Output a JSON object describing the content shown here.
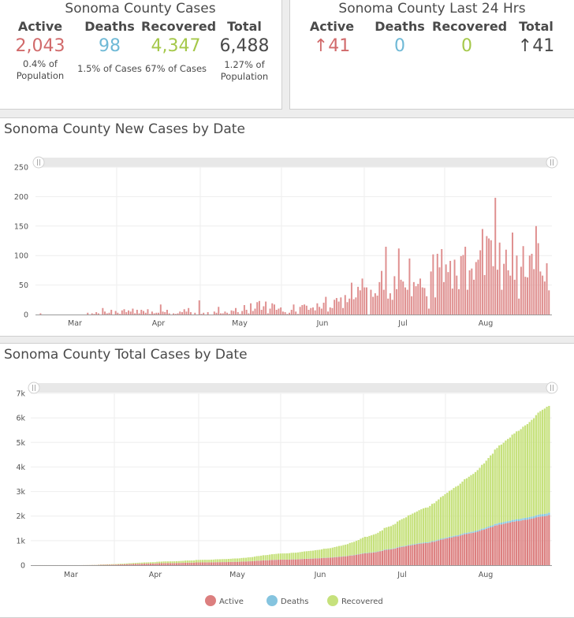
{
  "cases_panel": {
    "title": "Sonoma County Cases",
    "kpis": [
      {
        "label": "Active",
        "value": "2,043",
        "sub": "0.4% of Population",
        "color": "#d16a6b"
      },
      {
        "label": "Deaths",
        "value": "98",
        "sub": "1.5% of Cases",
        "color": "#6fb9d6"
      },
      {
        "label": "Recovered",
        "value": "4,347",
        "sub": "67% of Cases",
        "color": "#a5c84a"
      },
      {
        "label": "Total",
        "value": "6,488",
        "sub": "1.27% of Population",
        "color": "#4a4a4a"
      }
    ]
  },
  "last24_panel": {
    "title": "Sonoma County Last 24 Hrs",
    "kpis": [
      {
        "label": "Active",
        "value": "↑41",
        "color": "#d16a6b"
      },
      {
        "label": "Deaths",
        "value": "0",
        "color": "#6fb9d6"
      },
      {
        "label": "Recovered",
        "value": "0",
        "color": "#a5c84a"
      },
      {
        "label": "Total",
        "value": "↑41",
        "color": "#4a4a4a"
      }
    ]
  },
  "chart_data": [
    {
      "type": "bar",
      "title": "Sonoma County New Cases by Date",
      "x_tick_labels": [
        "Mar",
        "Apr",
        "May",
        "Jun",
        "Jul",
        "Aug"
      ],
      "y_tick_labels": [
        "0",
        "50",
        "100",
        "150",
        "200",
        "250"
      ],
      "ylim": [
        0,
        250
      ],
      "grid": true,
      "range_slider": true,
      "series": [
        {
          "color": "#df8f8f",
          "values": [
            0,
            0,
            2,
            0,
            0,
            0,
            0,
            0,
            0,
            0,
            0,
            0,
            0,
            0,
            0,
            0,
            0,
            0,
            0,
            0,
            0,
            0,
            0,
            0,
            3,
            0,
            2,
            1,
            4,
            2,
            0,
            11,
            5,
            2,
            3,
            8,
            0,
            6,
            3,
            1,
            7,
            9,
            4,
            7,
            5,
            10,
            2,
            8,
            2,
            8,
            6,
            3,
            9,
            1,
            5,
            2,
            3,
            3,
            17,
            5,
            4,
            8,
            2,
            0,
            2,
            1,
            2,
            5,
            4,
            9,
            5,
            11,
            4,
            0,
            3,
            0,
            24,
            1,
            3,
            0,
            4,
            0,
            0,
            5,
            3,
            13,
            2,
            2,
            5,
            3,
            1,
            7,
            6,
            11,
            4,
            1,
            6,
            16,
            8,
            2,
            19,
            6,
            10,
            21,
            23,
            8,
            14,
            22,
            2,
            10,
            19,
            17,
            8,
            10,
            12,
            5,
            4,
            1,
            3,
            8,
            17,
            5,
            1,
            13,
            16,
            17,
            15,
            8,
            11,
            12,
            7,
            19,
            13,
            10,
            20,
            30,
            5,
            12,
            11,
            25,
            28,
            22,
            29,
            11,
            33,
            21,
            27,
            54,
            26,
            29,
            47,
            41,
            61,
            46,
            46,
            0,
            42,
            30,
            36,
            32,
            55,
            74,
            42,
            115,
            27,
            36,
            25,
            65,
            43,
            112,
            59,
            56,
            46,
            42,
            95,
            31,
            55,
            48,
            52,
            61,
            46,
            45,
            31,
            10,
            73,
            102,
            29,
            103,
            80,
            111,
            55,
            85,
            72,
            91,
            44,
            93,
            66,
            43,
            99,
            101,
            115,
            42,
            75,
            78,
            59,
            89,
            93,
            109,
            145,
            67,
            133,
            129,
            126,
            82,
            198,
            76,
            122,
            42,
            86,
            110,
            75,
            66,
            139,
            59,
            100,
            27,
            81,
            116,
            64,
            63,
            100,
            103,
            77,
            150,
            121,
            73,
            66,
            56,
            87,
            41
          ]
        }
      ]
    },
    {
      "type": "bar",
      "stacked": true,
      "title": "Sonoma County Total Cases by Date",
      "x_tick_labels": [
        "Mar",
        "Apr",
        "May",
        "Jun",
        "Jul",
        "Aug"
      ],
      "y_tick_labels": [
        "0",
        "1k",
        "2k",
        "3k",
        "4k",
        "5k",
        "6k",
        "7k"
      ],
      "ylim": [
        0,
        7000
      ],
      "grid": true,
      "range_slider": true,
      "legend": {
        "position": "bottom",
        "entries": [
          "Active",
          "Deaths",
          "Recovered"
        ]
      },
      "series": [
        {
          "name": "Active",
          "color": "#dc7f7f",
          "final_value": 2043
        },
        {
          "name": "Deaths",
          "color": "#85c4df",
          "final_value": 98
        },
        {
          "name": "Recovered",
          "color": "#c6e17c",
          "final_value": 4347
        }
      ],
      "total_final": 6488
    }
  ]
}
